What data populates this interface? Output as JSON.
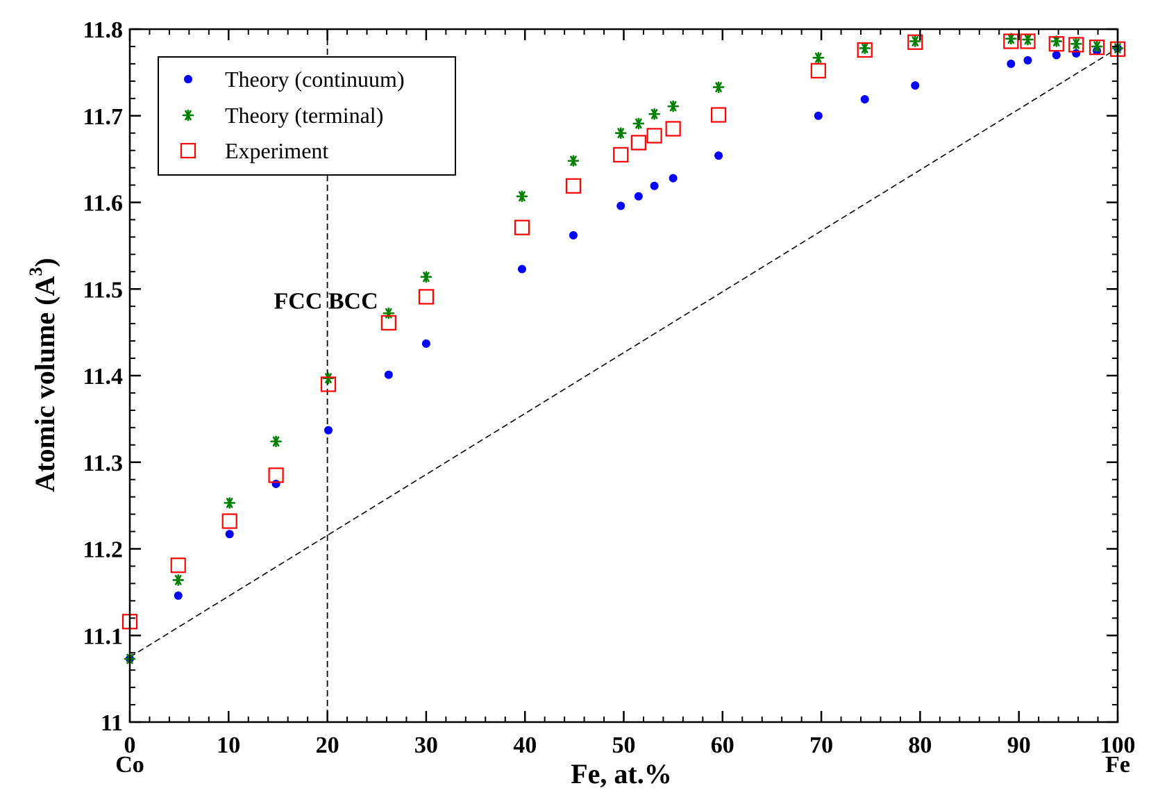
{
  "chart_data": {
    "type": "scatter",
    "xlabel": "Fe, at.%",
    "ylabel": "Atomic volume (A",
    "ylabel_superscript": "3",
    "ylabel_close": ")",
    "xlim": [
      0,
      100
    ],
    "ylim": [
      11.0,
      11.8
    ],
    "x_ticks": [
      0,
      10,
      20,
      30,
      40,
      50,
      60,
      70,
      80,
      90,
      100
    ],
    "x_tick_labels": [
      "0",
      "10",
      "20",
      "30",
      "40",
      "50",
      "60",
      "70",
      "80",
      "90",
      "100"
    ],
    "y_ticks": [
      11.0,
      11.1,
      11.2,
      11.3,
      11.4,
      11.5,
      11.6,
      11.7,
      11.8
    ],
    "y_tick_labels": [
      "11",
      "11.1",
      "11.2",
      "11.3",
      "11.4",
      "11.5",
      "11.6",
      "11.7",
      "11.8"
    ],
    "x_end_labels": {
      "left": "Co",
      "right": "Fe"
    },
    "legend_position": "top-left",
    "annotation": {
      "text": "FCC BCC",
      "x": 20,
      "y": 11.5
    },
    "phase_boundary_x": 20,
    "reference_line": {
      "x": [
        0,
        100
      ],
      "y": [
        11.075,
        11.778
      ],
      "style": "dashed"
    },
    "series": [
      {
        "name": "Theory (continuum)",
        "marker": "circle",
        "color": "#0000ff",
        "x": [
          0,
          4.9,
          10.1,
          14.8,
          20.1,
          26.2,
          30.0,
          39.7,
          44.9,
          49.7,
          51.5,
          53.1,
          55.0,
          59.6,
          69.7,
          74.4,
          79.5,
          89.2,
          90.9,
          93.8,
          95.8,
          97.9,
          100
        ],
        "y": [
          11.073,
          11.146,
          11.217,
          11.275,
          11.337,
          11.401,
          11.437,
          11.523,
          11.562,
          11.596,
          11.607,
          11.619,
          11.628,
          11.654,
          11.7,
          11.719,
          11.735,
          11.76,
          11.764,
          11.77,
          11.772,
          11.775,
          11.778
        ]
      },
      {
        "name": "Theory (terminal)",
        "marker": "star",
        "color": "#008000",
        "x": [
          0,
          4.9,
          10.1,
          14.8,
          20.1,
          26.2,
          30.0,
          39.7,
          44.9,
          49.7,
          51.5,
          53.1,
          55.0,
          59.6,
          69.7,
          74.4,
          79.5,
          89.2,
          90.9,
          93.8,
          95.8,
          97.9,
          100
        ],
        "y": [
          11.073,
          11.164,
          11.253,
          11.324,
          11.397,
          11.472,
          11.514,
          11.607,
          11.648,
          11.68,
          11.691,
          11.702,
          11.711,
          11.733,
          11.767,
          11.778,
          11.786,
          11.789,
          11.788,
          11.786,
          11.783,
          11.78,
          11.778
        ]
      },
      {
        "name": "Experiment",
        "marker": "square",
        "color": "#ff0000",
        "x": [
          0,
          4.9,
          10.1,
          14.8,
          20.1,
          26.2,
          30.0,
          39.7,
          44.9,
          49.7,
          51.5,
          53.1,
          55.0,
          59.6,
          69.7,
          74.4,
          79.5,
          89.2,
          90.9,
          93.8,
          95.8,
          97.9,
          100
        ],
        "y": [
          11.116,
          11.181,
          11.232,
          11.285,
          11.39,
          11.461,
          11.491,
          11.571,
          11.619,
          11.655,
          11.669,
          11.677,
          11.685,
          11.701,
          11.752,
          11.776,
          11.785,
          11.786,
          11.786,
          11.783,
          11.782,
          11.779,
          11.777
        ]
      }
    ]
  }
}
